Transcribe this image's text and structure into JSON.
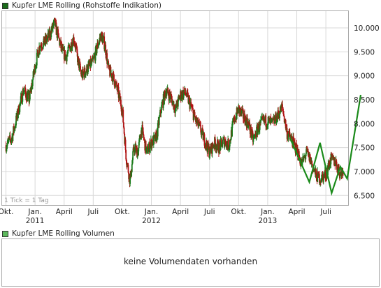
{
  "chart_data": {
    "type": "line",
    "title": "Kupfer LME Rolling (Rohstoffe Indikation)",
    "tick_note": "1 Tick = 1 Tag",
    "ylim": [
      6300,
      10350
    ],
    "yticks": [
      {
        "v": 10000,
        "label": "10.000"
      },
      {
        "v": 9500,
        "label": "9.500"
      },
      {
        "v": 9000,
        "label": "9.000"
      },
      {
        "v": 8500,
        "label": "8.500"
      },
      {
        "v": 8000,
        "label": "8.000"
      },
      {
        "v": 7500,
        "label": "7.500"
      },
      {
        "v": 7000,
        "label": "7.000"
      },
      {
        "v": 6500,
        "label": "6.500"
      }
    ],
    "xlim": [
      -0.4,
      35.3
    ],
    "xticks": [
      {
        "m": 0,
        "label": "Okt."
      },
      {
        "m": 3,
        "label": "Jan.",
        "year": "2011"
      },
      {
        "m": 6,
        "label": "April"
      },
      {
        "m": 9,
        "label": "Juli"
      },
      {
        "m": 12,
        "label": "Okt."
      },
      {
        "m": 15,
        "label": "Jan.",
        "year": "2012"
      },
      {
        "m": 18,
        "label": "April"
      },
      {
        "m": 21,
        "label": "Juli"
      },
      {
        "m": 24,
        "label": "Okt."
      },
      {
        "m": 27,
        "label": "Jan.",
        "year": "2013"
      },
      {
        "m": 30,
        "label": "April"
      },
      {
        "m": 33,
        "label": "Juli"
      }
    ],
    "price_path": [
      [
        0,
        7550
      ],
      [
        0.6,
        7700
      ],
      [
        1.2,
        8200
      ],
      [
        1.8,
        8700
      ],
      [
        2.4,
        8500
      ],
      [
        3.0,
        9200
      ],
      [
        3.5,
        9650
      ],
      [
        4.0,
        9700
      ],
      [
        4.5,
        9850
      ],
      [
        5.0,
        10100
      ],
      [
        5.4,
        9800
      ],
      [
        5.8,
        9500
      ],
      [
        6.2,
        9400
      ],
      [
        6.6,
        9600
      ],
      [
        7.0,
        9800
      ],
      [
        7.4,
        9350
      ],
      [
        7.8,
        9000
      ],
      [
        8.2,
        9100
      ],
      [
        8.6,
        9200
      ],
      [
        9.0,
        9300
      ],
      [
        9.4,
        9600
      ],
      [
        9.8,
        9850
      ],
      [
        10.2,
        9650
      ],
      [
        10.6,
        9100
      ],
      [
        11.0,
        9000
      ],
      [
        11.5,
        8700
      ],
      [
        12.0,
        8300
      ],
      [
        12.4,
        7300
      ],
      [
        12.8,
        6800
      ],
      [
        13.2,
        7500
      ],
      [
        13.6,
        7400
      ],
      [
        14.0,
        7900
      ],
      [
        14.5,
        7400
      ],
      [
        15.0,
        7600
      ],
      [
        15.5,
        7700
      ],
      [
        16.0,
        8300
      ],
      [
        16.5,
        8700
      ],
      [
        17.0,
        8550
      ],
      [
        17.5,
        8300
      ],
      [
        18.0,
        8600
      ],
      [
        18.5,
        8650
      ],
      [
        19.0,
        8400
      ],
      [
        19.5,
        8100
      ],
      [
        20.0,
        7900
      ],
      [
        20.5,
        7650
      ],
      [
        21.0,
        7400
      ],
      [
        21.5,
        7600
      ],
      [
        22.0,
        7500
      ],
      [
        22.5,
        7650
      ],
      [
        23.0,
        7550
      ],
      [
        23.5,
        8050
      ],
      [
        24.0,
        8300
      ],
      [
        24.5,
        8150
      ],
      [
        25.0,
        8000
      ],
      [
        25.5,
        7650
      ],
      [
        26.0,
        7900
      ],
      [
        26.5,
        8050
      ],
      [
        27.0,
        8050
      ],
      [
        27.5,
        8000
      ],
      [
        28.0,
        8150
      ],
      [
        28.5,
        8350
      ],
      [
        29.0,
        7800
      ],
      [
        29.5,
        7650
      ],
      [
        30.0,
        7450
      ],
      [
        30.5,
        7150
      ],
      [
        31.0,
        7400
      ],
      [
        31.5,
        7200
      ],
      [
        32.0,
        6900
      ],
      [
        32.5,
        6850
      ],
      [
        33.0,
        6950
      ],
      [
        33.5,
        7250
      ],
      [
        34.0,
        7200
      ],
      [
        34.5,
        6950
      ],
      [
        34.8,
        7050
      ]
    ],
    "trend_line": [
      [
        29.3,
        7700
      ],
      [
        31.3,
        6780
      ],
      [
        32.4,
        7600
      ],
      [
        33.6,
        6550
      ],
      [
        34.5,
        7100
      ],
      [
        35.2,
        6850
      ],
      [
        36.6,
        8600
      ]
    ],
    "colors": {
      "up": "#1a7a1a",
      "down": "#b01414",
      "trend": "#1a8a1a",
      "grid": "#d8d8d8"
    }
  },
  "volume_panel": {
    "title": "Kupfer LME Rolling Volumen",
    "message": "keine Volumendaten vorhanden",
    "color": "#5cb85c"
  }
}
